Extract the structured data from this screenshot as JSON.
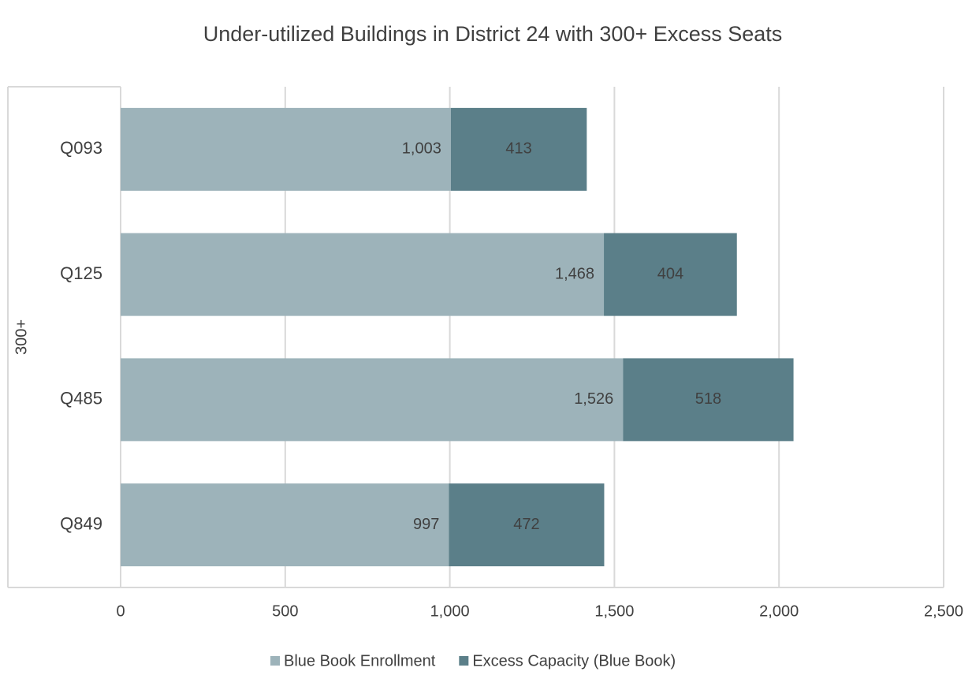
{
  "chart_data": {
    "type": "stacked_barh",
    "title": "Under-utilized Buildings in District 24 with 300+ Excess Seats",
    "group_label": "300+",
    "categories": [
      "Q093",
      "Q125",
      "Q485",
      "Q849"
    ],
    "series": [
      {
        "name": "Blue Book Enrollment",
        "color": "#9db3ba",
        "values": [
          1003,
          1468,
          1526,
          997
        ],
        "value_labels": [
          "1,003",
          "1,468",
          "1,526",
          "997"
        ]
      },
      {
        "name": "Excess Capacity (Blue Book)",
        "color": "#5b7f89",
        "values": [
          413,
          404,
          518,
          472
        ]
      }
    ],
    "xlim": [
      0,
      2500
    ],
    "xticks": [
      0,
      500,
      {
        "value": 1000,
        "label": "1,000"
      },
      {
        "value": 1500,
        "label": "1,500"
      },
      {
        "value": 2000,
        "label": "2,000"
      },
      {
        "value": 2500,
        "label": "2,500"
      }
    ],
    "grid": true
  }
}
